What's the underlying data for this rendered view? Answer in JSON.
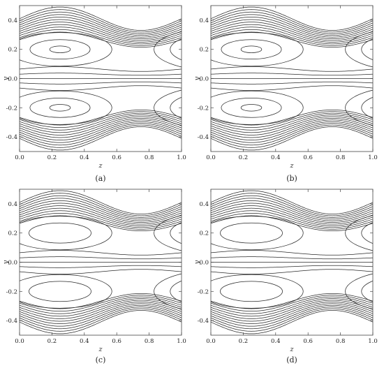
{
  "chart_data": [
    {
      "type": "contour",
      "panel_label": "(a)",
      "xlabel": "z",
      "ylabel": "y",
      "xlim": [
        0.0,
        1.0
      ],
      "ylim": [
        -0.5,
        0.5
      ],
      "x_ticks": [
        "0.0",
        "0.2",
        "0.4",
        "0.6",
        "0.8",
        "1.0"
      ],
      "y_ticks": [
        "-0.4",
        "-0.2",
        "0.0",
        "0.2",
        "0.4"
      ],
      "wall_mean": 0.41,
      "wall_amplitude": 0.08,
      "vortex_centers": [
        [
          0.25,
          0.2
        ],
        [
          0.25,
          -0.2
        ]
      ],
      "vortex_rings": 3
    },
    {
      "type": "contour",
      "panel_label": "(b)",
      "xlabel": "z",
      "ylabel": "y",
      "xlim": [
        0.0,
        1.0
      ],
      "ylim": [
        -0.5,
        0.5
      ],
      "x_ticks": [
        "0.0",
        "0.2",
        "0.4",
        "0.6",
        "0.8",
        "1.0"
      ],
      "y_ticks": [
        "-0.4",
        "-0.2",
        "0.0",
        "0.2",
        "0.4"
      ],
      "wall_mean": 0.41,
      "wall_amplitude": 0.08,
      "vortex_centers": [
        [
          0.25,
          0.2
        ],
        [
          0.25,
          -0.2
        ]
      ],
      "vortex_rings": 3
    },
    {
      "type": "contour",
      "panel_label": "(c)",
      "xlabel": "z",
      "ylabel": "y",
      "xlim": [
        0.0,
        1.0
      ],
      "ylim": [
        -0.5,
        0.5
      ],
      "x_ticks": [
        "0.0",
        "0.2",
        "0.4",
        "0.6",
        "0.8",
        "1.0"
      ],
      "y_ticks": [
        "-0.4",
        "-0.2",
        "0.0",
        "0.2",
        "0.4"
      ],
      "wall_mean": 0.41,
      "wall_amplitude": 0.08,
      "vortex_centers": [
        [
          0.25,
          0.2
        ],
        [
          0.25,
          -0.2
        ]
      ],
      "vortex_rings": 2
    },
    {
      "type": "contour",
      "panel_label": "(d)",
      "xlabel": "z",
      "ylabel": "y",
      "xlim": [
        0.0,
        1.0
      ],
      "ylim": [
        -0.5,
        0.5
      ],
      "x_ticks": [
        "0.0",
        "0.2",
        "0.4",
        "0.6",
        "0.8",
        "1.0"
      ],
      "y_ticks": [
        "-0.4",
        "-0.2",
        "0.0",
        "0.2",
        "0.4"
      ],
      "wall_mean": 0.41,
      "wall_amplitude": 0.08,
      "vortex_centers": [
        [
          0.25,
          0.2
        ],
        [
          0.25,
          -0.2
        ]
      ],
      "vortex_rings": 2
    }
  ],
  "colors": {
    "line": "#2a2a2a",
    "frame": "#444444",
    "background": "#ffffff"
  }
}
